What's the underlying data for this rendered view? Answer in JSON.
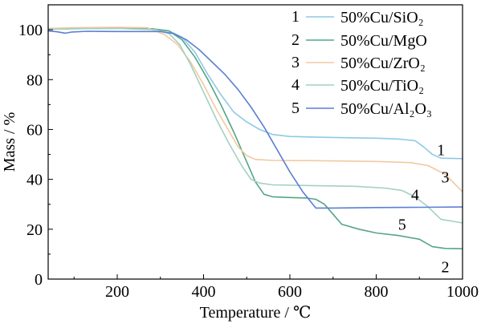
{
  "chart_data": {
    "type": "line",
    "xlabel": "Temperature / ℃",
    "ylabel": "Mass / %",
    "xlim": [
      40,
      1000
    ],
    "ylim": [
      0,
      110
    ],
    "x_ticks": [
      200,
      400,
      600,
      800,
      1000
    ],
    "y_ticks": [
      0,
      20,
      40,
      60,
      80,
      100
    ],
    "grid": false,
    "legend_position": "top-right",
    "series": [
      {
        "name": "50%Cu/SiO₂",
        "number": "1",
        "color": "#8ec9e4",
        "points": [
          [
            40,
            100.5
          ],
          [
            100,
            100.5
          ],
          [
            200,
            100.6
          ],
          [
            280,
            100.4
          ],
          [
            320,
            99.5
          ],
          [
            350,
            97
          ],
          [
            380,
            91
          ],
          [
            410,
            82
          ],
          [
            440,
            74
          ],
          [
            470,
            67
          ],
          [
            500,
            63
          ],
          [
            530,
            60
          ],
          [
            560,
            58
          ],
          [
            600,
            57.2
          ],
          [
            700,
            56.8
          ],
          [
            800,
            56.5
          ],
          [
            850,
            56.2
          ],
          [
            890,
            55.5
          ],
          [
            910,
            53
          ],
          [
            930,
            50
          ],
          [
            950,
            48.5
          ],
          [
            1000,
            48.3
          ]
        ]
      },
      {
        "name": "50%Cu/MgO",
        "number": "2",
        "color": "#56a586",
        "points": [
          [
            40,
            100.3
          ],
          [
            100,
            100.4
          ],
          [
            200,
            100.6
          ],
          [
            280,
            100.4
          ],
          [
            320,
            99.5
          ],
          [
            350,
            96
          ],
          [
            380,
            89
          ],
          [
            410,
            80
          ],
          [
            440,
            70
          ],
          [
            470,
            59
          ],
          [
            500,
            47
          ],
          [
            520,
            39
          ],
          [
            540,
            34
          ],
          [
            560,
            33
          ],
          [
            600,
            32.7
          ],
          [
            640,
            32.5
          ],
          [
            660,
            32
          ],
          [
            680,
            30
          ],
          [
            700,
            26
          ],
          [
            720,
            22
          ],
          [
            760,
            20
          ],
          [
            800,
            18.5
          ],
          [
            850,
            17.5
          ],
          [
            900,
            16
          ],
          [
            930,
            13
          ],
          [
            960,
            12.3
          ],
          [
            1000,
            12.2
          ]
        ]
      },
      {
        "name": "50%Cu/ZrO₂",
        "number": "3",
        "color": "#f2c9a0",
        "points": [
          [
            40,
            100.5
          ],
          [
            100,
            100.8
          ],
          [
            200,
            101
          ],
          [
            270,
            100.8
          ],
          [
            310,
            98
          ],
          [
            340,
            94
          ],
          [
            370,
            87
          ],
          [
            400,
            78
          ],
          [
            430,
            68
          ],
          [
            460,
            59
          ],
          [
            480,
            53
          ],
          [
            500,
            49.5
          ],
          [
            520,
            48
          ],
          [
            560,
            47.6
          ],
          [
            650,
            47.5
          ],
          [
            800,
            47.2
          ],
          [
            880,
            46.7
          ],
          [
            920,
            45.5
          ],
          [
            960,
            42
          ],
          [
            1000,
            35
          ]
        ]
      },
      {
        "name": "50%Cu/TiO₂",
        "number": "4",
        "color": "#a3d1bf",
        "points": [
          [
            40,
            100.2
          ],
          [
            100,
            100.4
          ],
          [
            200,
            100.5
          ],
          [
            290,
            100
          ],
          [
            320,
            98.5
          ],
          [
            345,
            94
          ],
          [
            370,
            86
          ],
          [
            400,
            75
          ],
          [
            430,
            64
          ],
          [
            460,
            54
          ],
          [
            490,
            45
          ],
          [
            510,
            40
          ],
          [
            530,
            38.5
          ],
          [
            560,
            37.8
          ],
          [
            650,
            37.5
          ],
          [
            750,
            37.2
          ],
          [
            820,
            36.5
          ],
          [
            860,
            35.5
          ],
          [
            890,
            33
          ],
          [
            920,
            29
          ],
          [
            950,
            24
          ],
          [
            1000,
            22.5
          ]
        ]
      },
      {
        "name": "50%Cu/Al₂O₃",
        "number": "5",
        "color": "#5b7fd4",
        "points": [
          [
            40,
            99.5
          ],
          [
            60,
            99.2
          ],
          [
            80,
            98.6
          ],
          [
            95,
            99.1
          ],
          [
            130,
            99.4
          ],
          [
            200,
            99.3
          ],
          [
            300,
            99.3
          ],
          [
            330,
            98.5
          ],
          [
            360,
            96
          ],
          [
            390,
            92
          ],
          [
            420,
            87
          ],
          [
            450,
            82
          ],
          [
            480,
            76
          ],
          [
            510,
            69
          ],
          [
            540,
            61
          ],
          [
            570,
            52
          ],
          [
            600,
            43
          ],
          [
            630,
            35
          ],
          [
            660,
            28.5
          ],
          [
            700,
            28.5
          ],
          [
            800,
            28.7
          ],
          [
            900,
            28.8
          ],
          [
            1000,
            28.9
          ]
        ]
      }
    ],
    "annotations": [
      {
        "text": "1",
        "x": 950,
        "y": 52
      },
      {
        "text": "3",
        "x": 960,
        "y": 41
      },
      {
        "text": "4",
        "x": 890,
        "y": 34
      },
      {
        "text": "5",
        "x": 860,
        "y": 22
      },
      {
        "text": "2",
        "x": 960,
        "y": 5
      }
    ]
  }
}
